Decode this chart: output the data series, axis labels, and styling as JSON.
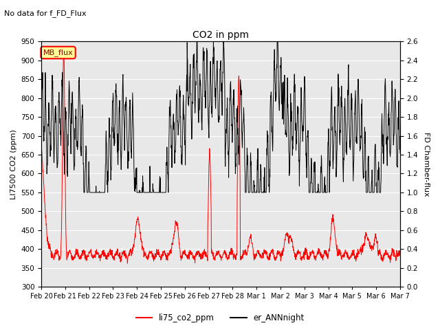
{
  "title": "CO2 in ppm",
  "top_left_text": "No data for f_FD_Flux",
  "ylabel_left": "LI7500 CO2 (ppm)",
  "ylabel_right": "FD Chamber-flux",
  "ylim_left": [
    300,
    950
  ],
  "ylim_right": [
    0.0,
    2.6
  ],
  "yticks_left": [
    300,
    350,
    400,
    450,
    500,
    550,
    600,
    650,
    700,
    750,
    800,
    850,
    900,
    950
  ],
  "yticks_right": [
    0.0,
    0.2,
    0.4,
    0.6,
    0.8,
    1.0,
    1.2,
    1.4,
    1.6,
    1.8,
    2.0,
    2.2,
    2.4,
    2.6
  ],
  "legend_entries": [
    "li75_co2_ppm",
    "er_ANNnight"
  ],
  "legend_colors": [
    "red",
    "black"
  ],
  "mb_flux_box_color": "#ffff99",
  "mb_flux_border_color": "red",
  "mb_flux_text_color": "darkred",
  "plot_bg_color": "#e8e8e8",
  "x_dates": [
    "Feb 20",
    "Feb 21",
    "Feb 22",
    "Feb 23",
    "Feb 24",
    "Feb 25",
    "Feb 26",
    "Feb 27",
    "Feb 28",
    "Mar 1",
    "Mar 2",
    "Mar 3",
    "Mar 4",
    "Mar 5",
    "Mar 6",
    "Mar 7"
  ],
  "n_points": 1600
}
